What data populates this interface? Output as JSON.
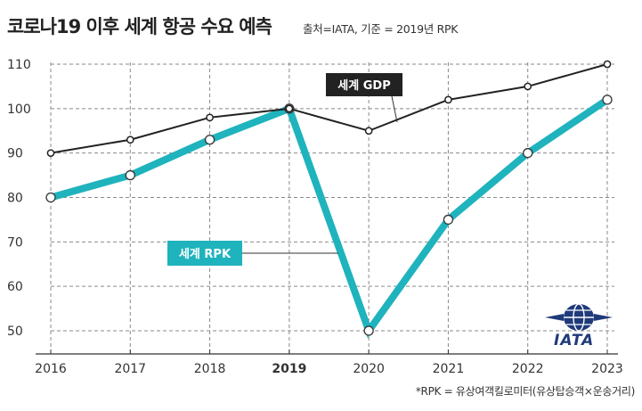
{
  "chart_data": {
    "type": "line",
    "title": "코로나19 이후 세계 항공 수요 예측",
    "subtitle": "출처=IATA, 기준 = 2019년 RPK",
    "footnote": "*RPK = 유상여객킬로미터(유상탑승객×운송거리)",
    "logo_text": "IATA",
    "categories": [
      "2016",
      "2017",
      "2018",
      "2019",
      "2020",
      "2021",
      "2022",
      "2023"
    ],
    "highlight_category": "2019",
    "ylim": [
      45,
      112
    ],
    "yticks": [
      50,
      60,
      70,
      80,
      90,
      100,
      110
    ],
    "grid": true,
    "series": [
      {
        "name": "세계 GDP",
        "values": [
          90,
          93,
          98,
          100,
          95,
          102,
          105,
          110
        ],
        "color": "#222222",
        "label_bg": "#222222"
      },
      {
        "name": "세계 RPK",
        "values": [
          80,
          85,
          93,
          100,
          50,
          75,
          90,
          102
        ],
        "color": "#1fb3bd",
        "label_bg": "#1fb3bd"
      }
    ]
  }
}
